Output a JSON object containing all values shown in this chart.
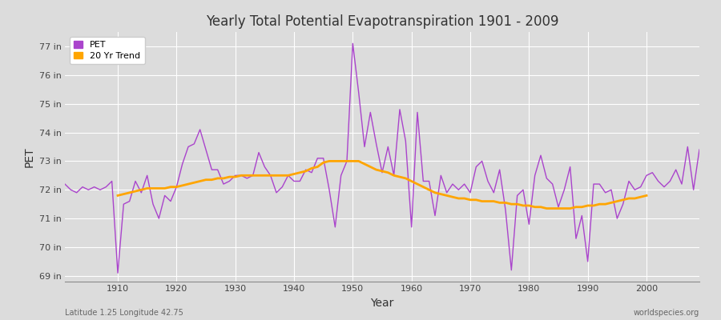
{
  "title": "Yearly Total Potential Evapotranspiration 1901 - 2009",
  "xlabel": "Year",
  "ylabel": "PET",
  "subtitle_left": "Latitude 1.25 Longitude 42.75",
  "subtitle_right": "worldspecies.org",
  "pet_color": "#AA44CC",
  "trend_color": "#FFA500",
  "background_color": "#DCDCDC",
  "plot_bg_color": "#DCDCDC",
  "grid_color": "#FFFFFF",
  "ylim": [
    68.8,
    77.5
  ],
  "yticks": [
    69,
    70,
    71,
    72,
    73,
    74,
    75,
    76,
    77
  ],
  "ytick_labels": [
    "69 in",
    "70 in",
    "71 in",
    "72 in",
    "73 in",
    "74 in",
    "75 in",
    "76 in",
    "77 in"
  ],
  "xticks": [
    1910,
    1920,
    1930,
    1940,
    1950,
    1960,
    1970,
    1980,
    1990,
    2000
  ],
  "years": [
    1901,
    1902,
    1903,
    1904,
    1905,
    1906,
    1907,
    1908,
    1909,
    1910,
    1911,
    1912,
    1913,
    1914,
    1915,
    1916,
    1917,
    1918,
    1919,
    1920,
    1921,
    1922,
    1923,
    1924,
    1925,
    1926,
    1927,
    1928,
    1929,
    1930,
    1931,
    1932,
    1933,
    1934,
    1935,
    1936,
    1937,
    1938,
    1939,
    1940,
    1941,
    1942,
    1943,
    1944,
    1945,
    1946,
    1947,
    1948,
    1949,
    1950,
    1951,
    1952,
    1953,
    1954,
    1955,
    1956,
    1957,
    1958,
    1959,
    1960,
    1961,
    1962,
    1963,
    1964,
    1965,
    1966,
    1967,
    1968,
    1969,
    1970,
    1971,
    1972,
    1973,
    1974,
    1975,
    1976,
    1977,
    1978,
    1979,
    1980,
    1981,
    1982,
    1983,
    1984,
    1985,
    1986,
    1987,
    1988,
    1989,
    1990,
    1991,
    1992,
    1993,
    1994,
    1995,
    1996,
    1997,
    1998,
    1999,
    2000,
    2001,
    2002,
    2003,
    2004,
    2005,
    2006,
    2007,
    2008,
    2009
  ],
  "pet_values": [
    72.2,
    72.0,
    71.9,
    72.1,
    72.0,
    72.1,
    72.0,
    72.1,
    72.3,
    69.1,
    71.5,
    71.6,
    72.3,
    71.9,
    72.5,
    71.5,
    71.0,
    71.8,
    71.6,
    72.1,
    72.9,
    73.5,
    73.6,
    74.1,
    73.4,
    72.7,
    72.7,
    72.2,
    72.3,
    72.5,
    72.5,
    72.4,
    72.5,
    73.3,
    72.8,
    72.5,
    71.9,
    72.1,
    72.5,
    72.3,
    72.3,
    72.7,
    72.6,
    73.1,
    73.1,
    72.0,
    70.7,
    72.5,
    73.0,
    77.1,
    75.4,
    73.5,
    74.7,
    73.6,
    72.6,
    73.5,
    72.5,
    74.8,
    73.7,
    70.7,
    74.7,
    72.3,
    72.3,
    71.1,
    72.5,
    71.9,
    72.2,
    72.0,
    72.2,
    71.9,
    72.8,
    73.0,
    72.3,
    71.9,
    72.7,
    71.3,
    69.2,
    71.8,
    72.0,
    70.8,
    72.5,
    73.2,
    72.4,
    72.2,
    71.4,
    72.0,
    72.8,
    70.3,
    71.1,
    69.5,
    72.2,
    72.2,
    71.9,
    72.0,
    71.0,
    71.5,
    72.3,
    72.0,
    72.1,
    72.5,
    72.6,
    72.3,
    72.1,
    72.3,
    72.7,
    72.2,
    73.5,
    72.0,
    73.4
  ],
  "trend_values": [
    null,
    null,
    null,
    null,
    null,
    null,
    null,
    null,
    null,
    71.8,
    71.85,
    71.9,
    71.95,
    72.0,
    72.05,
    72.05,
    72.05,
    72.05,
    72.1,
    72.1,
    72.15,
    72.2,
    72.25,
    72.3,
    72.35,
    72.35,
    72.4,
    72.4,
    72.45,
    72.45,
    72.5,
    72.5,
    72.5,
    72.5,
    72.5,
    72.5,
    72.5,
    72.5,
    72.5,
    72.55,
    72.6,
    72.65,
    72.75,
    72.8,
    72.95,
    73.0,
    73.0,
    73.0,
    73.0,
    73.0,
    73.0,
    72.9,
    72.8,
    72.7,
    72.65,
    72.6,
    72.5,
    72.45,
    72.4,
    72.3,
    72.2,
    72.1,
    72.0,
    71.9,
    71.85,
    71.8,
    71.75,
    71.7,
    71.7,
    71.65,
    71.65,
    71.6,
    71.6,
    71.6,
    71.55,
    71.55,
    71.5,
    71.5,
    71.45,
    71.45,
    71.4,
    71.4,
    71.35,
    71.35,
    71.35,
    71.35,
    71.35,
    71.4,
    71.4,
    71.45,
    71.45,
    71.5,
    71.5,
    71.55,
    71.6,
    71.65,
    71.7,
    71.7,
    71.75,
    71.8,
    null,
    null,
    null,
    null,
    null,
    null,
    null,
    null,
    null
  ]
}
